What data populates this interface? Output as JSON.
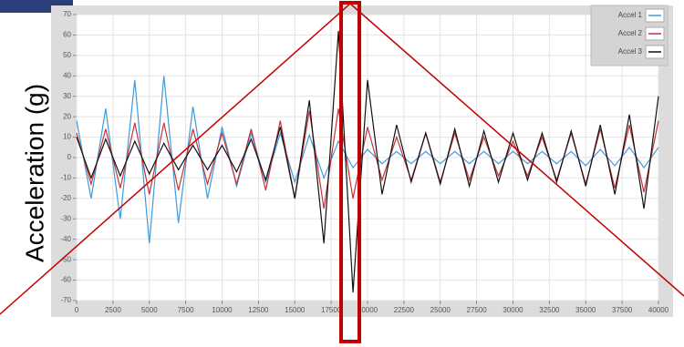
{
  "chart_data": {
    "type": "line",
    "y_label": "Acceleration (g)",
    "x": [
      0,
      1000,
      2000,
      3000,
      4000,
      5000,
      6000,
      7000,
      8000,
      9000,
      10000,
      11000,
      12000,
      13000,
      14000,
      15000,
      16000,
      17000,
      18000,
      19000,
      20000,
      21000,
      22000,
      23000,
      24000,
      25000,
      26000,
      27000,
      28000,
      29000,
      30000,
      31000,
      32000,
      33000,
      34000,
      35000,
      36000,
      37000,
      38000,
      39000,
      40000
    ],
    "series": [
      {
        "name": "Accel 1",
        "color": "#3d9bdc",
        "values": [
          18,
          -20,
          24,
          -30,
          38,
          -42,
          40,
          -32,
          25,
          -20,
          15,
          -14,
          12,
          -12,
          12,
          -12,
          11,
          -10,
          8,
          -5,
          4,
          -3,
          3,
          -3,
          3,
          -3,
          3,
          -3,
          3,
          -3,
          3,
          -3,
          3,
          -3,
          3,
          -4,
          4,
          -4,
          5,
          -5,
          5
        ]
      },
      {
        "name": "Accel 2",
        "color": "#c4323a",
        "values": [
          12,
          -13,
          14,
          -15,
          17,
          -18,
          17,
          -16,
          14,
          -13,
          12,
          -13,
          14,
          -16,
          18,
          -20,
          23,
          -25,
          24,
          -20,
          15,
          -11,
          10,
          -11,
          12,
          -12,
          12,
          -11,
          10,
          -9,
          8,
          -9,
          10,
          -11,
          12,
          -13,
          14,
          -15,
          16,
          -17,
          18
        ]
      },
      {
        "name": "Accel 3",
        "color": "#111111",
        "values": [
          10,
          -10,
          9,
          -9,
          8,
          -8,
          7,
          -6,
          6,
          -6,
          6,
          -7,
          9,
          -11,
          15,
          -20,
          28,
          -42,
          62,
          -66,
          38,
          -18,
          16,
          -12,
          12,
          -13,
          14,
          -14,
          13,
          -12,
          12,
          -11,
          12,
          -12,
          13,
          -14,
          16,
          -18,
          21,
          -25,
          30
        ]
      }
    ],
    "xlim": [
      0,
      40000
    ],
    "xticks": [
      0,
      2500,
      5000,
      7500,
      10000,
      12500,
      15000,
      17500,
      20000,
      22500,
      25000,
      27500,
      30000,
      32500,
      35000,
      37500,
      40000
    ],
    "ylim": [
      -70,
      70
    ],
    "yticks": [
      70,
      60,
      50,
      40,
      30,
      20,
      10,
      0,
      -10,
      -20,
      -30,
      -40,
      -50,
      -60,
      -70
    ],
    "grid": true,
    "legend": "upper right"
  }
}
